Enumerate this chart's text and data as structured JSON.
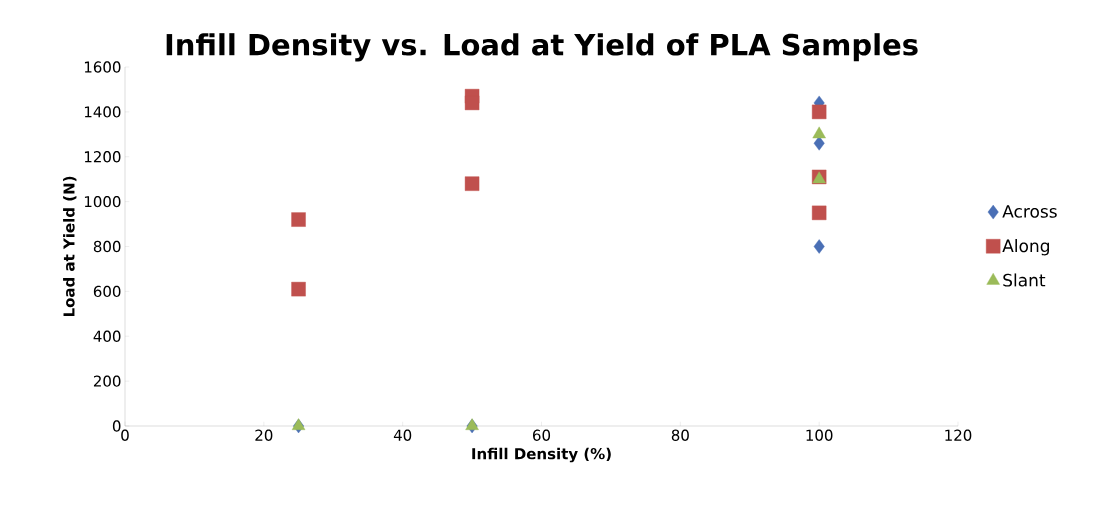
{
  "chart_data": {
    "type": "scatter",
    "title": "Infill Density vs. Load at Yield of PLA Samples",
    "xlabel": "Infill Density (%)",
    "ylabel": "Load at Yield (N)",
    "series": [
      {
        "name": "Across",
        "color": "#4a6fb5",
        "marker": "diamond",
        "x": [
          25,
          50,
          100,
          100,
          100
        ],
        "values": [
          0,
          0,
          1440,
          1260,
          800
        ]
      },
      {
        "name": "Along",
        "color": "#c0504d",
        "marker": "square",
        "x": [
          25,
          25,
          50,
          50,
          50,
          100,
          100,
          100
        ],
        "values": [
          920,
          610,
          1470,
          1440,
          1080,
          1400,
          1110,
          950
        ]
      },
      {
        "name": "Slant",
        "color": "#9bbb59",
        "marker": "triangle",
        "x": [
          25,
          50,
          100,
          100
        ],
        "values": [
          0,
          0,
          1300,
          1100
        ]
      }
    ],
    "xlim": [
      0,
      120
    ],
    "xticks": [
      0,
      20,
      40,
      60,
      80,
      100,
      120
    ],
    "ylim": [
      0,
      1600
    ],
    "yticks": [
      0,
      200,
      400,
      600,
      800,
      1000,
      1200,
      1400,
      1600
    ],
    "grid": false,
    "legend": "right"
  }
}
